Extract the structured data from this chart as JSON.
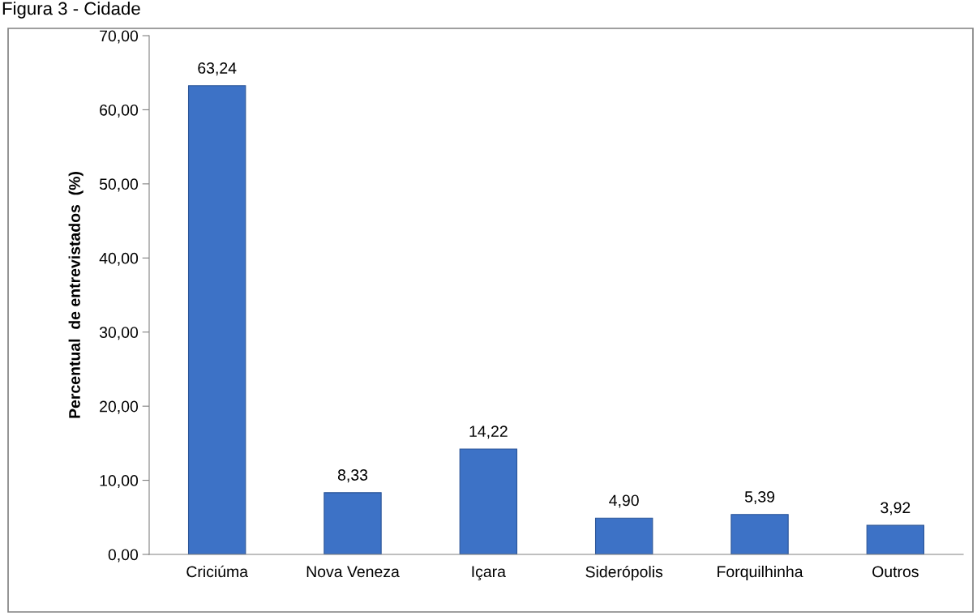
{
  "chart_data": {
    "type": "bar",
    "title": "Figura 3 - Cidade",
    "ylabel": "Percentual  de entrevistados  (%)",
    "categories": [
      "Criciúma",
      "Nova Veneza",
      "Içara",
      "Siderópolis",
      "Forquilhinha",
      "Outros"
    ],
    "values": [
      63.24,
      8.33,
      14.22,
      4.9,
      5.39,
      3.92
    ],
    "value_labels": [
      "63,24",
      "8,33",
      "14,22",
      "4,90",
      "5,39",
      "3,92"
    ],
    "color": "#3d72c6",
    "ylim": [
      0,
      70
    ],
    "yticks": [
      {
        "value": 0,
        "label": "0,00"
      },
      {
        "value": 10,
        "label": "10,00"
      },
      {
        "value": 20,
        "label": "20,00"
      },
      {
        "value": 30,
        "label": "30,00"
      },
      {
        "value": 40,
        "label": "40,00"
      },
      {
        "value": 50,
        "label": "50,00"
      },
      {
        "value": 60,
        "label": "60,00"
      },
      {
        "value": 70,
        "label": "70,00"
      }
    ],
    "grid": false,
    "legend": false
  }
}
